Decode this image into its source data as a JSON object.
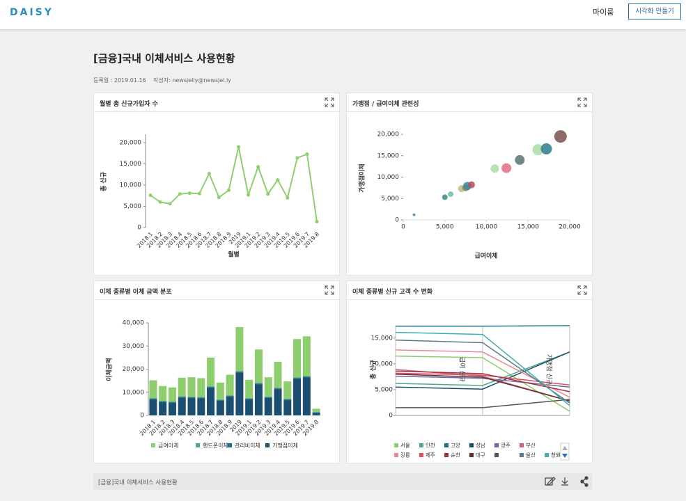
{
  "header": {
    "logo": "DAISY",
    "my_room": "마이룸",
    "create_button": "시각화 만들기"
  },
  "page": {
    "title": "[금융]국내 이체서비스 사용현황",
    "registered": "등록일 : 2019.01.16",
    "author": "작성자: newsjelly@newsjel.ly"
  },
  "footer": {
    "title": "[금융]국내 이체서비스 사용현황"
  },
  "chart_data": [
    {
      "type": "line",
      "title": "월별 총 신규가입자 수",
      "x_label": "월별",
      "y_label": "총 신규",
      "categories": [
        "2018.1",
        "2018.2",
        "2018.3",
        "2018.4",
        "2018.5",
        "2018.6",
        "2018.7",
        "2018.8",
        "2018.9",
        "2019",
        "2019.1",
        "2019.2",
        "2019.3",
        "2019.4",
        "2019.5",
        "2019.6",
        "2019.7",
        "2019.8"
      ],
      "values": [
        7600,
        6000,
        5600,
        7900,
        8100,
        8000,
        12700,
        7100,
        8800,
        19000,
        7700,
        14300,
        7900,
        11200,
        7000,
        16400,
        17300,
        1400
      ],
      "color": "#8fce6f",
      "ylim": [
        0,
        22000
      ],
      "yticks": [
        0,
        {
          "value": 5000,
          "label": "5,000"
        },
        {
          "value": 10000,
          "label": "10,000"
        },
        {
          "value": 15000,
          "label": "15,000"
        },
        {
          "value": 20000,
          "label": "20,000"
        }
      ]
    },
    {
      "type": "bubble",
      "title": "가맹점 / 급여이체 관련성",
      "x_label": "급여이체",
      "y_label": "가맹점이체",
      "x": [
        1300,
        5000,
        5700,
        7000,
        7500,
        7700,
        8200,
        11000,
        12400,
        14000,
        16200,
        17200,
        18900
      ],
      "values": [
        1200,
        5300,
        6000,
        7300,
        7500,
        7900,
        8200,
        12000,
        12100,
        14000,
        16400,
        16600,
        19500
      ],
      "sizes": [
        2,
        4,
        4,
        5,
        5,
        6,
        5,
        6,
        7,
        7,
        8,
        8,
        9
      ],
      "colors": [
        "#4a7fa0",
        "#3d8c8c",
        "#6ec0a0",
        "#c8b888",
        "#8a8a5a",
        "#3a8aa0",
        "#b05060",
        "#a8dca8",
        "#e07080",
        "#557777",
        "#a8dca8",
        "#2a7f8a",
        "#7a5050"
      ],
      "xlim": [
        0,
        20000
      ],
      "xticks": [
        0,
        {
          "value": 5000,
          "label": "5,000"
        },
        {
          "value": 10000,
          "label": "10,000"
        },
        {
          "value": 15000,
          "label": "15,000"
        },
        {
          "value": 20000,
          "label": "20,000"
        }
      ],
      "ylim": [
        0,
        20000
      ],
      "yticks": [
        0,
        {
          "value": 5000,
          "label": "5,000"
        },
        {
          "value": 10000,
          "label": "10,000"
        },
        {
          "value": 15000,
          "label": "15,000"
        },
        {
          "value": 20000,
          "label": "20,000"
        }
      ]
    },
    {
      "type": "stacked_bar",
      "title": "이체 종류별 이체 금액 분포",
      "y_label": "이체금액",
      "categories": [
        "2018.1",
        "2018.2",
        "2018.3",
        "2018.4",
        "2018.5",
        "2018.6",
        "2018.7",
        "2018.8",
        "2018.9",
        "2019",
        "2019.1",
        "2019.2",
        "2019.3",
        "2019.4",
        "2019.5",
        "2019.6",
        "2019.7",
        "2019.8"
      ],
      "series": [
        {
          "name": "급여이체",
          "color": "#8fce6f",
          "values": [
            7700,
            6400,
            6100,
            8000,
            8400,
            8100,
            12400,
            7200,
            8900,
            19000,
            7900,
            14400,
            8300,
            11200,
            7500,
            16500,
            17200,
            1300
          ]
        },
        {
          "name": "핸드폰이체",
          "color": "#4fa88a",
          "values": [
            300,
            300,
            300,
            300,
            300,
            300,
            300,
            300,
            300,
            300,
            300,
            300,
            300,
            300,
            300,
            300,
            300,
            300
          ]
        },
        {
          "name": "관리비이체",
          "color": "#1e6f8a",
          "values": [
            300,
            300,
            300,
            300,
            300,
            300,
            300,
            300,
            300,
            300,
            300,
            300,
            300,
            300,
            300,
            300,
            300,
            300
          ]
        },
        {
          "name": "가맹점이체",
          "color": "#1a4f72",
          "values": [
            6900,
            5700,
            5400,
            7700,
            7500,
            7400,
            12000,
            6400,
            8100,
            18600,
            6900,
            13500,
            7600,
            11400,
            6600,
            15900,
            16400,
            1000
          ]
        }
      ],
      "ylim": [
        0,
        40000
      ],
      "yticks": [
        0,
        {
          "value": 10000,
          "label": "10,000"
        },
        {
          "value": 20000,
          "label": "20,000"
        },
        {
          "value": 30000,
          "label": "30,000"
        },
        {
          "value": 40000,
          "label": "40,000"
        }
      ]
    },
    {
      "type": "parallel",
      "title": "이체 종류별 신규 고객 수 변화",
      "dimensions": [
        "총 신규",
        "급여 신규",
        "가맹점 신규"
      ],
      "series": [
        {
          "name": "서울",
          "color": "#8fce6f",
          "values": [
            11500,
            11200,
            800
          ]
        },
        {
          "name": "인천",
          "color": "#4fa88a",
          "values": [
            6200,
            5800,
            12300
          ]
        },
        {
          "name": "고양",
          "color": "#1e6f8a",
          "values": [
            17300,
            17300,
            17400
          ]
        },
        {
          "name": "성남",
          "color": "#1a4f72",
          "values": [
            5500,
            5100,
            12300
          ]
        },
        {
          "name": "광주",
          "color": "#6a6a9a",
          "values": [
            7600,
            7200,
            5500
          ]
        },
        {
          "name": "부산",
          "color": "#c06080",
          "values": [
            8900,
            7600,
            2800
          ]
        },
        {
          "name": "강릉",
          "color": "#e88890",
          "values": [
            12700,
            12300,
            3500
          ]
        },
        {
          "name": "제주",
          "color": "#e05060",
          "values": [
            8200,
            7800,
            5900
          ]
        },
        {
          "name": "순천",
          "color": "#a03040",
          "values": [
            8600,
            8100,
            4600
          ]
        },
        {
          "name": "대구",
          "color": "#603030",
          "values": [
            8000,
            7400,
            2800
          ]
        },
        {
          "name": null,
          "color": "#555555",
          "values": [
            1500,
            1500,
            3100
          ]
        },
        {
          "name": "울산",
          "color": "#5a7a8a",
          "values": [
            14600,
            14100,
            2400
          ]
        },
        {
          "name": "창원",
          "color": "#3ab0b0",
          "values": [
            16100,
            15700,
            1900
          ]
        }
      ],
      "ylim": [
        0,
        17400
      ],
      "yticks": [
        0,
        {
          "value": 5000,
          "label": "5,000"
        },
        {
          "value": 10000,
          "label": "10,000"
        },
        {
          "value": 15000,
          "label": "15,000"
        }
      ]
    }
  ]
}
